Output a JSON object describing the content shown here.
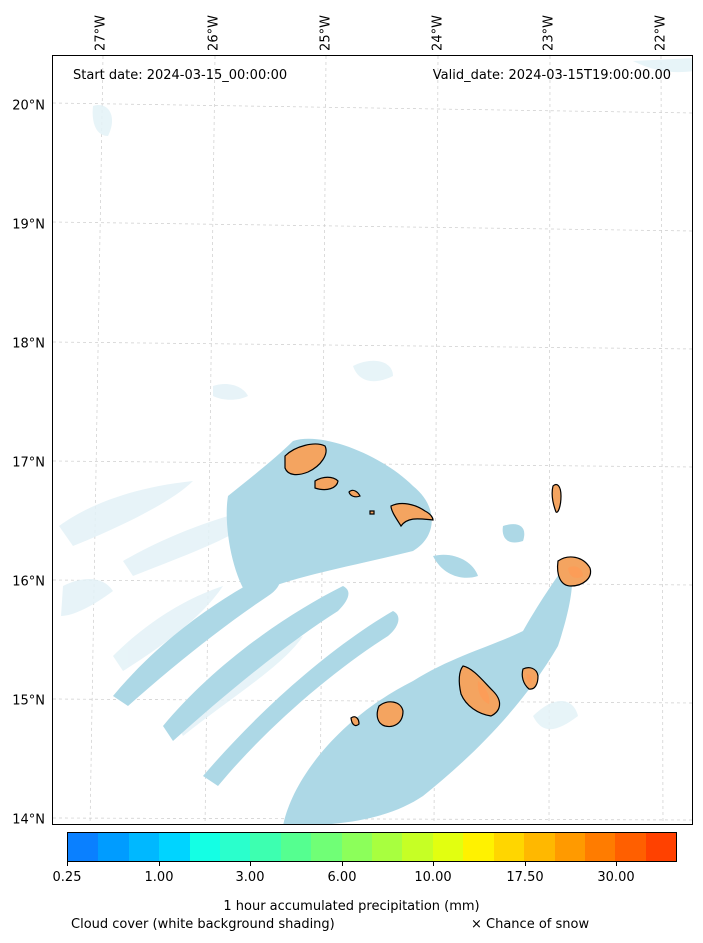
{
  "map": {
    "start_date": "Start date: 2024-03-15_00:00:00",
    "valid_date": "Valid_date: 2024-03-15T19:00:00.00",
    "lon_labels": [
      "27°W",
      "26°W",
      "25°W",
      "24°W",
      "23°W",
      "22°W"
    ],
    "lat_labels": [
      "20°N",
      "19°N",
      "18°N",
      "17°N",
      "16°N",
      "15°N",
      "14°N"
    ],
    "land_color": "#f4a460",
    "cloud_color": "#add8e6",
    "precip_color": "#ff9a55"
  },
  "colorbar": {
    "label": "1 hour accumulated precipitation (mm)",
    "tick_labels": [
      "0.25",
      "1.00",
      "3.00",
      "6.00",
      "10.00",
      "17.50",
      "30.00"
    ],
    "colors": [
      "#0a80ff",
      "#009cff",
      "#00b8ff",
      "#00d4ff",
      "#14ffe4",
      "#2affcc",
      "#3dffb0",
      "#55ff90",
      "#70ff76",
      "#8cff5a",
      "#a8ff3f",
      "#c6ff25",
      "#e2ff10",
      "#fff200",
      "#ffd600",
      "#ffb800",
      "#ff9a00",
      "#ff7c00",
      "#ff5f00",
      "#ff4100"
    ]
  },
  "legend": {
    "cloud_note": "Cloud cover (white background shading)",
    "snow_note": "× Chance of snow"
  }
}
